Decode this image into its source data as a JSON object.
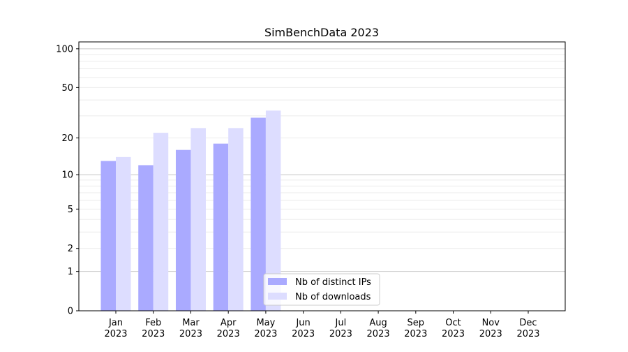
{
  "chart_data": {
    "type": "bar",
    "title": "SimBenchData 2023",
    "xlabel": "",
    "ylabel": "",
    "yscale": "log(1+x)",
    "ylim": [
      0,
      113
    ],
    "yticks": [
      0,
      1,
      2,
      5,
      10,
      20,
      50,
      100
    ],
    "grid": true,
    "legend_position": "bottom-center",
    "categories": [
      "Jan\n2023",
      "Feb\n2023",
      "Mar\n2023",
      "Apr\n2023",
      "May\n2023",
      "Jun\n2023",
      "Jul\n2023",
      "Aug\n2023",
      "Sep\n2023",
      "Oct\n2023",
      "Nov\n2023",
      "Dec\n2023"
    ],
    "series": [
      {
        "name": "Nb of distinct IPs",
        "color": "#aaaaff",
        "values": [
          13,
          12,
          16,
          18,
          29,
          null,
          null,
          null,
          null,
          null,
          null,
          null
        ]
      },
      {
        "name": "Nb of downloads",
        "color": "#ddddff",
        "values": [
          14,
          22,
          24,
          24,
          33,
          null,
          null,
          null,
          null,
          null,
          null,
          null
        ]
      }
    ]
  }
}
